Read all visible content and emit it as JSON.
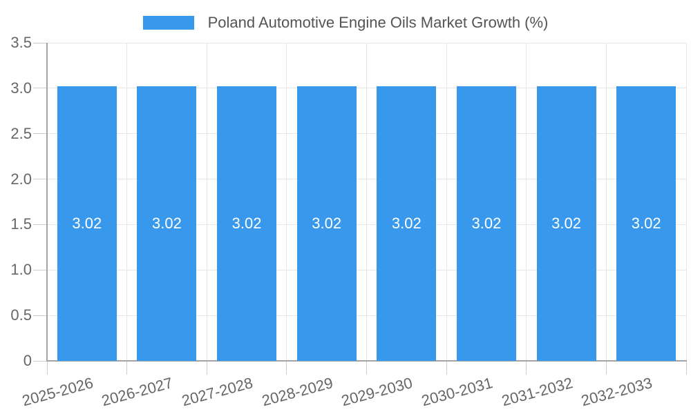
{
  "chart_data": {
    "type": "bar",
    "title": "Poland Automotive Engine Oils Market Growth (%)",
    "categories": [
      "2025-2026",
      "2026-2027",
      "2027-2028",
      "2028-2029",
      "2029-2030",
      "2030-2031",
      "2031-2032",
      "2032-2033"
    ],
    "values": [
      3.02,
      3.02,
      3.02,
      3.02,
      3.02,
      3.02,
      3.02,
      3.02
    ],
    "bar_value_labels": [
      "3.02",
      "3.02",
      "3.02",
      "3.02",
      "3.02",
      "3.02",
      "3.02",
      "3.02"
    ],
    "xlabel": "",
    "ylabel": "",
    "ylim": [
      0,
      3.5
    ],
    "yticks": [
      0,
      0.5,
      1.0,
      1.5,
      2.0,
      2.5,
      3.0,
      3.5
    ],
    "ytick_labels": [
      "0",
      "0.5",
      "1.0",
      "1.5",
      "2.0",
      "2.5",
      "3.0",
      "3.5"
    ],
    "grid": "on",
    "legend_position": "top-center",
    "colors": {
      "bar": "#3898EC",
      "legend_text": "#545454",
      "axis_text": "#666666",
      "grid_line": "#e6e6e6",
      "axis_line": "#a3a3a3",
      "tick_line": "#cccccc",
      "value_label_text": "#ffffff",
      "background": "#ffffff"
    }
  }
}
